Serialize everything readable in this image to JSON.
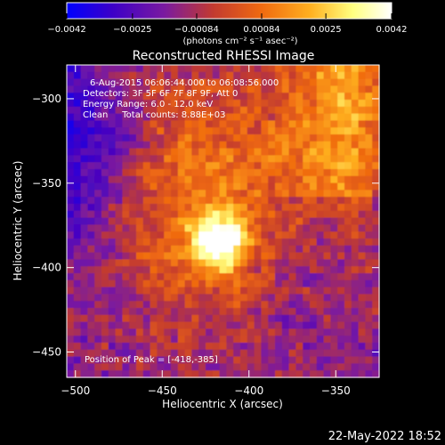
{
  "chart_data": {
    "type": "heatmap",
    "title": "Reconstructed RHESSI Image",
    "xlabel": "Heliocentric X (arcsec)",
    "ylabel": "Heliocentric Y (arcsec)",
    "xlim": [
      -505,
      -325
    ],
    "ylim": [
      -465,
      -280
    ],
    "x_ticks": [
      -500,
      -450,
      -400,
      -350
    ],
    "y_ticks": [
      -300,
      -350,
      -400,
      -450
    ],
    "colorbar": {
      "range": [
        -0.0042,
        0.0042
      ],
      "ticks": [
        -0.0042,
        -0.0025,
        -0.00084,
        0.00084,
        0.0025,
        0.0042
      ],
      "tick_labels": [
        "-0.0042",
        "-0.0025",
        "-0.00084",
        "0.00084",
        "0.0025",
        "0.0042"
      ],
      "unit_label": "(photons cm⁻² s⁻¹ asec⁻²)",
      "colors": [
        "#0000ff",
        "#3c00c8",
        "#7a1aa0",
        "#c23a30",
        "#f06a10",
        "#ffb020",
        "#ffff80",
        "#ffffff"
      ]
    },
    "peak": {
      "x": -418,
      "y": -385,
      "value": 0.0042
    },
    "annotations": [
      "6-Aug-2015 06:06:44.000 to 06:08:56.000",
      "Detectors: 3F 5F 6F 7F 8F 9F, Att 0",
      "Energy Range: 6.0 - 12.0 keV",
      "Clean     Total counts: 8.88E+03"
    ],
    "peak_label": "Position of Peak = [-418,-385]"
  },
  "footer": {
    "timestamp": "22-May-2022 18:52"
  }
}
